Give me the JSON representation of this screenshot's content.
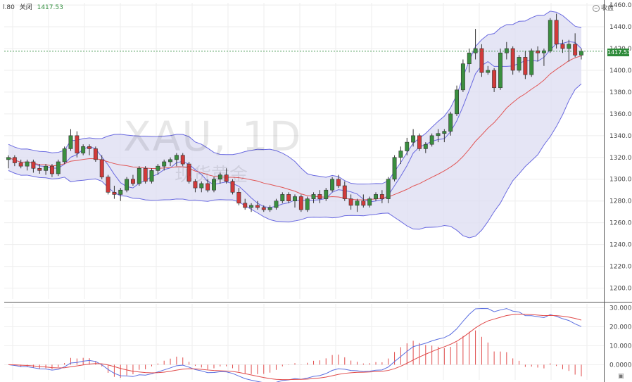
{
  "header": {
    "partial_value": "l.80",
    "close_label": "关闭",
    "close_value": "1417.53",
    "collapse_label": "收盘"
  },
  "watermark": {
    "symbol": "XAU, 1D",
    "brand": "现货黄金"
  },
  "price_tag": "1417.53",
  "colors": {
    "up": "#3a8f3f",
    "down": "#d23a3a",
    "band_fill": "#dcdcf2",
    "band_line": "#6a6ae0",
    "mid_line": "#e15656",
    "grid": "#eeeeee",
    "macd_line": "#5a6ee0",
    "signal_line": "#e04a4a"
  },
  "chart_data": [
    {
      "type": "candlestick",
      "series": [
        {
          "name": "price",
          "ohlc": [
            [
              1318,
              1322,
              1310,
              1320
            ],
            [
              1320,
              1322,
              1312,
              1315
            ],
            [
              1315,
              1318,
              1310,
              1312
            ],
            [
              1312,
              1318,
              1308,
              1316
            ],
            [
              1316,
              1318,
              1306,
              1310
            ],
            [
              1310,
              1314,
              1305,
              1308
            ],
            [
              1308,
              1314,
              1304,
              1312
            ],
            [
              1312,
              1314,
              1302,
              1305
            ],
            [
              1305,
              1318,
              1303,
              1316
            ],
            [
              1316,
              1330,
              1314,
              1328
            ],
            [
              1328,
              1346,
              1326,
              1340
            ],
            [
              1340,
              1344,
              1320,
              1324
            ],
            [
              1324,
              1332,
              1322,
              1330
            ],
            [
              1330,
              1332,
              1322,
              1328
            ],
            [
              1328,
              1330,
              1316,
              1318
            ],
            [
              1318,
              1322,
              1300,
              1302
            ],
            [
              1302,
              1304,
              1286,
              1288
            ],
            [
              1288,
              1294,
              1282,
              1286
            ],
            [
              1286,
              1292,
              1280,
              1290
            ],
            [
              1290,
              1302,
              1288,
              1300
            ],
            [
              1300,
              1304,
              1294,
              1296
            ],
            [
              1296,
              1312,
              1294,
              1310
            ],
            [
              1310,
              1312,
              1296,
              1298
            ],
            [
              1298,
              1310,
              1296,
              1308
            ],
            [
              1308,
              1314,
              1304,
              1312
            ],
            [
              1312,
              1318,
              1308,
              1316
            ],
            [
              1316,
              1320,
              1312,
              1318
            ],
            [
              1318,
              1324,
              1312,
              1322
            ],
            [
              1322,
              1324,
              1312,
              1314
            ],
            [
              1314,
              1316,
              1296,
              1298
            ],
            [
              1298,
              1300,
              1288,
              1292
            ],
            [
              1292,
              1298,
              1288,
              1296
            ],
            [
              1296,
              1300,
              1288,
              1290
            ],
            [
              1290,
              1302,
              1288,
              1300
            ],
            [
              1300,
              1306,
              1296,
              1304
            ],
            [
              1304,
              1310,
              1296,
              1298
            ],
            [
              1298,
              1300,
              1286,
              1288
            ],
            [
              1288,
              1292,
              1276,
              1278
            ],
            [
              1278,
              1282,
              1272,
              1274
            ],
            [
              1274,
              1278,
              1270,
              1276
            ],
            [
              1276,
              1280,
              1272,
              1274
            ],
            [
              1274,
              1276,
              1270,
              1272
            ],
            [
              1272,
              1276,
              1270,
              1274
            ],
            [
              1274,
              1282,
              1272,
              1280
            ],
            [
              1280,
              1288,
              1278,
              1286
            ],
            [
              1286,
              1288,
              1278,
              1280
            ],
            [
              1280,
              1286,
              1274,
              1284
            ],
            [
              1284,
              1286,
              1270,
              1272
            ],
            [
              1272,
              1284,
              1270,
              1282
            ],
            [
              1282,
              1288,
              1278,
              1286
            ],
            [
              1286,
              1290,
              1278,
              1282
            ],
            [
              1282,
              1292,
              1280,
              1290
            ],
            [
              1290,
              1302,
              1288,
              1300
            ],
            [
              1300,
              1304,
              1292,
              1294
            ],
            [
              1294,
              1298,
              1280,
              1282
            ],
            [
              1282,
              1286,
              1272,
              1276
            ],
            [
              1276,
              1282,
              1270,
              1280
            ],
            [
              1280,
              1286,
              1274,
              1276
            ],
            [
              1276,
              1284,
              1274,
              1282
            ],
            [
              1282,
              1288,
              1280,
              1286
            ],
            [
              1286,
              1290,
              1278,
              1282
            ],
            [
              1282,
              1302,
              1278,
              1300
            ],
            [
              1300,
              1322,
              1298,
              1320
            ],
            [
              1320,
              1330,
              1314,
              1326
            ],
            [
              1326,
              1338,
              1322,
              1334
            ],
            [
              1334,
              1346,
              1330,
              1340
            ],
            [
              1340,
              1342,
              1326,
              1328
            ],
            [
              1328,
              1334,
              1324,
              1332
            ],
            [
              1332,
              1342,
              1330,
              1340
            ],
            [
              1340,
              1346,
              1334,
              1342
            ],
            [
              1342,
              1346,
              1334,
              1344
            ],
            [
              1344,
              1362,
              1340,
              1360
            ],
            [
              1360,
              1386,
              1358,
              1382
            ],
            [
              1382,
              1410,
              1380,
              1406
            ],
            [
              1406,
              1420,
              1398,
              1416
            ],
            [
              1416,
              1438,
              1410,
              1420
            ],
            [
              1420,
              1424,
              1394,
              1398
            ],
            [
              1398,
              1404,
              1396,
              1400
            ],
            [
              1400,
              1402,
              1380,
              1384
            ],
            [
              1384,
              1420,
              1382,
              1416
            ],
            [
              1416,
              1426,
              1410,
              1420
            ],
            [
              1420,
              1422,
              1396,
              1400
            ],
            [
              1400,
              1414,
              1398,
              1412
            ],
            [
              1412,
              1418,
              1392,
              1396
            ],
            [
              1396,
              1420,
              1394,
              1418
            ],
            [
              1418,
              1422,
              1408,
              1416
            ],
            [
              1416,
              1420,
              1404,
              1418
            ],
            [
              1418,
              1448,
              1416,
              1446
            ],
            [
              1446,
              1452,
              1420,
              1424
            ],
            [
              1424,
              1428,
              1416,
              1420
            ],
            [
              1420,
              1428,
              1408,
              1424
            ],
            [
              1424,
              1434,
              1412,
              1414
            ],
            [
              1414,
              1420,
              1410,
              1417.53
            ]
          ]
        }
      ],
      "overlays": [
        "Bollinger Bands",
        "Moving Average"
      ],
      "y_axis": {
        "ticks": [
          1200,
          1220,
          1240,
          1260,
          1280,
          1300,
          1320,
          1340,
          1360,
          1380,
          1400,
          1420,
          1440,
          1460
        ],
        "tick_labels": [
          "1200.00",
          "1220.00",
          "1240.00",
          "1260.00",
          "1280.00",
          "1300.00",
          "1320.00",
          "1340.00",
          "1360.00",
          "1380.00",
          "1400.00",
          "1420.00",
          "1440.00",
          "1460.00"
        ],
        "range": [
          1190,
          1462
        ]
      },
      "grid": true
    },
    {
      "type": "macd",
      "y_axis": {
        "ticks": [
          0,
          10,
          20,
          30
        ],
        "tick_labels": [
          "0.0000",
          "10.0000",
          "20.0000",
          "30.0000"
        ],
        "range": [
          -8,
          32
        ]
      },
      "grid": true
    }
  ]
}
